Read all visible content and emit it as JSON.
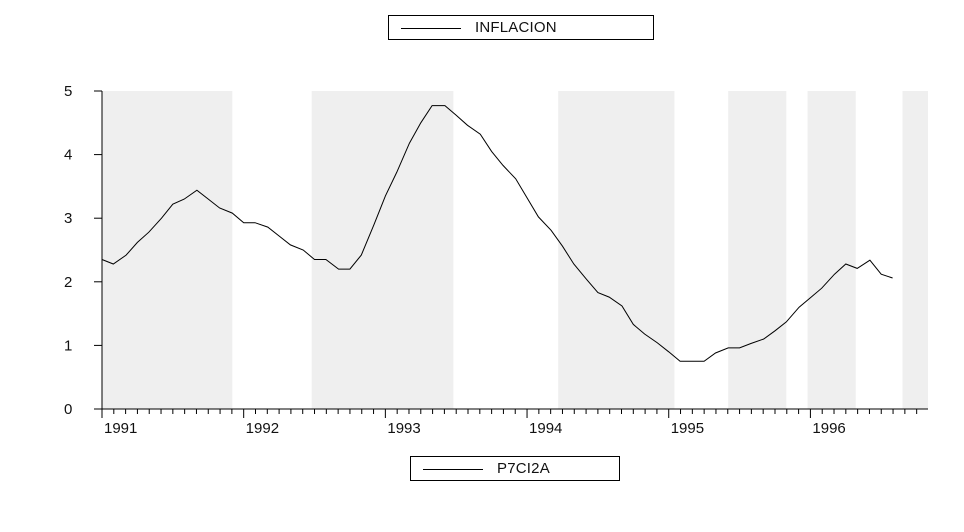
{
  "chart_data": {
    "type": "line",
    "legend_top": "INFLACION",
    "legend_bottom": "P7CI2A",
    "legend_placement": [
      "top-center",
      "bottom-center"
    ],
    "colors": {
      "line": "#000000",
      "shade": "#efefef",
      "axis": "#000000"
    },
    "ylim": [
      0,
      5
    ],
    "y_ticks": [
      0,
      1,
      2,
      3,
      4,
      5
    ],
    "x_range": [
      1991.0,
      1996.83
    ],
    "x_ticks": [
      "1991",
      "1992",
      "1993",
      "1994",
      "1995",
      "1996"
    ],
    "shaded_periods": [
      [
        1991.0,
        1991.92
      ],
      [
        1992.48,
        1993.48
      ],
      [
        1994.22,
        1995.04
      ],
      [
        1995.42,
        1995.83
      ],
      [
        1995.98,
        1996.32
      ],
      [
        1996.65,
        1996.83
      ]
    ],
    "series": [
      {
        "name": "INFLACION",
        "x": [
          1991.0,
          1991.08,
          1991.17,
          1991.25,
          1991.33,
          1991.42,
          1991.5,
          1991.58,
          1991.67,
          1991.75,
          1991.83,
          1991.92,
          1992.0,
          1992.08,
          1992.17,
          1992.25,
          1992.33,
          1992.42,
          1992.5,
          1992.58,
          1992.67,
          1992.75,
          1992.83,
          1992.92,
          1993.0,
          1993.08,
          1993.17,
          1993.25,
          1993.33,
          1993.42,
          1993.5,
          1993.58,
          1993.67,
          1993.75,
          1993.83,
          1993.92,
          1994.0,
          1994.08,
          1994.17,
          1994.25,
          1994.33,
          1994.42,
          1994.5,
          1994.58,
          1994.67,
          1994.75,
          1994.83,
          1994.92,
          1995.0,
          1995.08,
          1995.17,
          1995.25,
          1995.33,
          1995.42,
          1995.5,
          1995.58,
          1995.67,
          1995.75,
          1995.83,
          1995.92,
          1996.0,
          1996.08,
          1996.17,
          1996.25,
          1996.33,
          1996.42,
          1996.5,
          1996.58
        ],
        "values": [
          2.35,
          2.28,
          2.42,
          2.62,
          2.78,
          3.0,
          3.22,
          3.3,
          3.44,
          3.3,
          3.16,
          3.08,
          2.93,
          2.93,
          2.86,
          2.72,
          2.58,
          2.5,
          2.35,
          2.35,
          2.2,
          2.2,
          2.42,
          2.9,
          3.35,
          3.72,
          4.18,
          4.5,
          4.77,
          4.77,
          4.62,
          4.46,
          4.32,
          4.05,
          3.83,
          3.62,
          3.32,
          3.02,
          2.81,
          2.56,
          2.28,
          2.04,
          1.83,
          1.76,
          1.62,
          1.33,
          1.18,
          1.04,
          0.9,
          0.75,
          0.75,
          0.75,
          0.88,
          0.96,
          0.96,
          1.03,
          1.1,
          1.23,
          1.37,
          1.6,
          1.75,
          1.9,
          2.12,
          2.28,
          2.21,
          2.34,
          2.12,
          2.06
        ]
      }
    ],
    "grid": false
  }
}
